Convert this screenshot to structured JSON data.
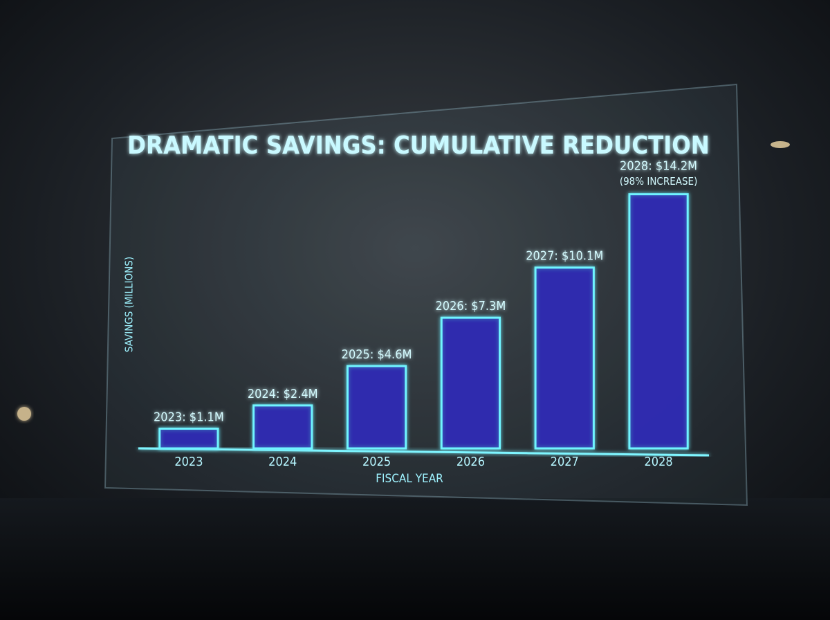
{
  "chart_data": {
    "type": "bar",
    "title": "DRAMATIC SAVINGS: CUMULATIVE REDUCTION",
    "x_label": "FISCAL YEAR",
    "y_label": "SAVINGS (MILLIONS)",
    "categories": [
      "2023",
      "2024",
      "2025",
      "2026",
      "2027",
      "2028"
    ],
    "values": [
      1.1,
      2.4,
      4.6,
      7.3,
      10.1,
      14.2
    ],
    "value_labels": [
      "2023: $1.1M",
      "2024: $2.4M",
      "2025: $4.6M",
      "2026: $7.3M",
      "2027: $10.1M",
      "2028: $14.2M"
    ],
    "annotations": [
      "(98% INCREASE)"
    ],
    "color": "#2f2cb0",
    "edgecolor": "#6ff4ff",
    "ylim": [
      0,
      15
    ],
    "grid": false
  }
}
